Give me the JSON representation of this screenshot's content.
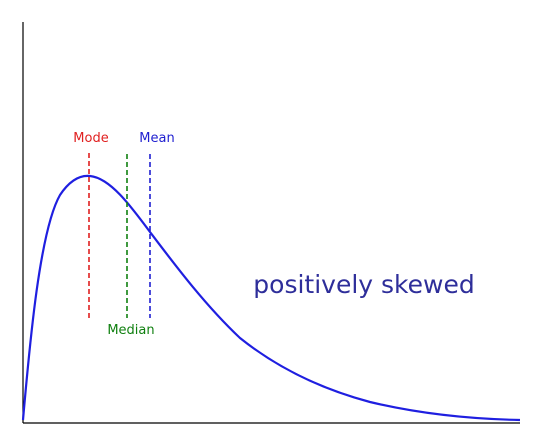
{
  "colors": {
    "curve": "#1f1fe0",
    "axis": "#000000",
    "mode": "#e02020",
    "median": "#108010",
    "mean": "#1f1fd0",
    "caption": "#2e2e9a",
    "background": "#ffffff"
  },
  "labels": {
    "mode": "Mode",
    "median": "Median",
    "mean": "Mean",
    "caption": "positively skewed"
  }
}
